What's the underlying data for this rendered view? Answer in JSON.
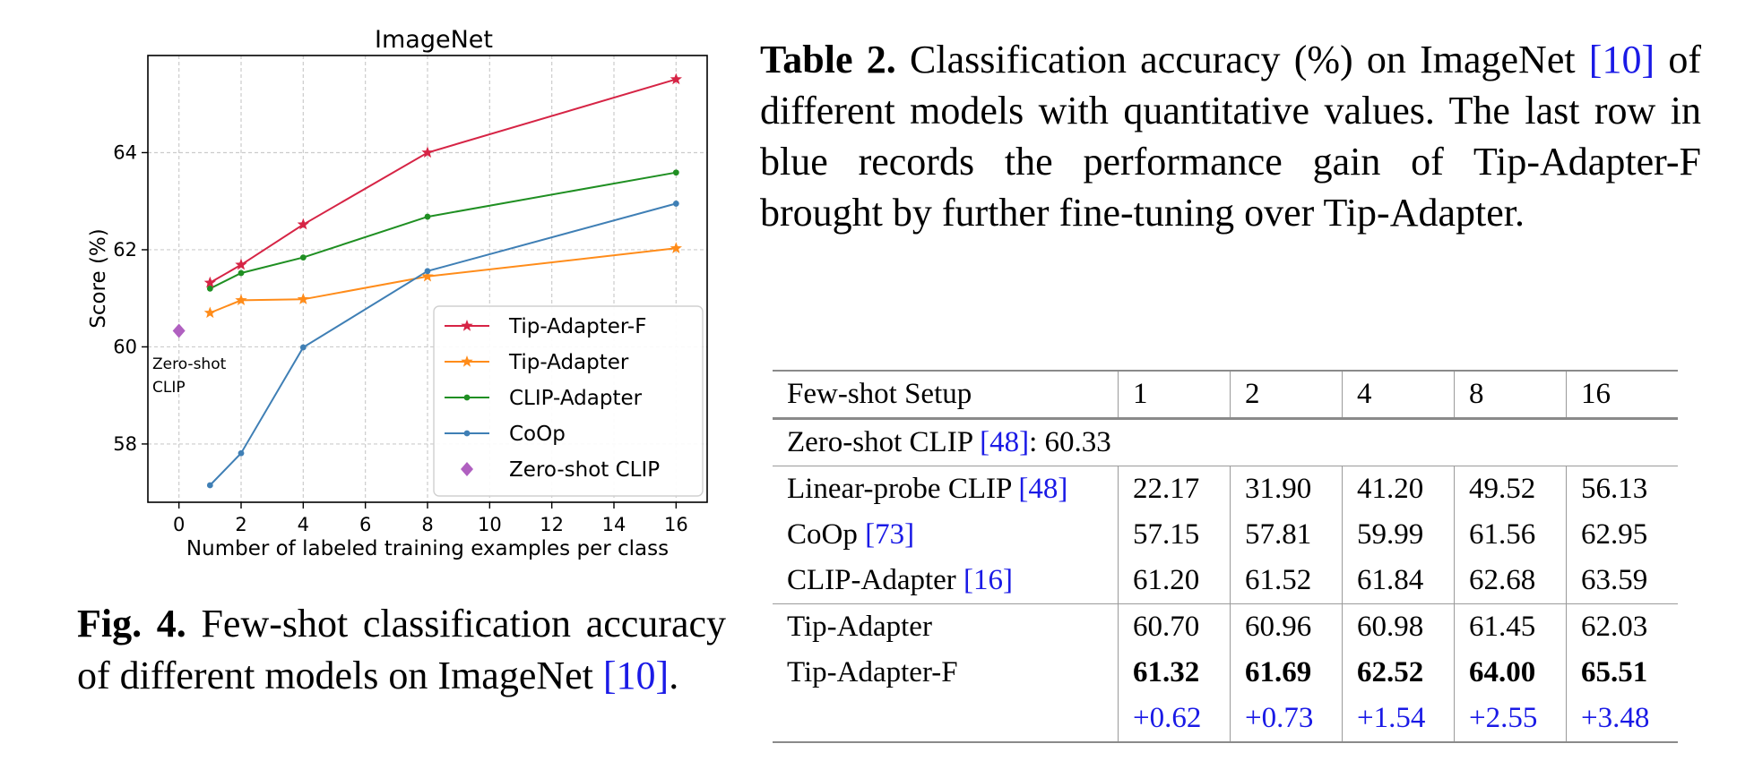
{
  "chart_data": {
    "type": "line",
    "title": "ImageNet",
    "xlabel": "Number of labeled training examples per class",
    "ylabel": "Score (%)",
    "xlim": [
      -1,
      17
    ],
    "ylim": [
      56.8,
      66.0
    ],
    "x_ticks": [
      "0",
      "2",
      "4",
      "6",
      "8",
      "10",
      "12",
      "14",
      "16"
    ],
    "y_ticks": [
      "58",
      "60",
      "62",
      "64"
    ],
    "grid": true,
    "legend_position": "bottom-right",
    "series": [
      {
        "name": "Tip-Adapter-F",
        "color": "#d62445",
        "marker": "star",
        "x": [
          1,
          2,
          4,
          8,
          16
        ],
        "y": [
          61.32,
          61.69,
          62.52,
          64.0,
          65.51
        ]
      },
      {
        "name": "Tip-Adapter",
        "color": "#ff8c1a",
        "marker": "star",
        "x": [
          1,
          2,
          4,
          8,
          16
        ],
        "y": [
          60.7,
          60.96,
          60.98,
          61.45,
          62.03
        ]
      },
      {
        "name": "CLIP-Adapter",
        "color": "#1f8f22",
        "marker": "dot",
        "x": [
          1,
          2,
          4,
          8,
          16
        ],
        "y": [
          61.2,
          61.52,
          61.84,
          62.68,
          63.59
        ]
      },
      {
        "name": "CoOp",
        "color": "#3f7fb5",
        "marker": "dot",
        "x": [
          1,
          2,
          4,
          8,
          16
        ],
        "y": [
          57.15,
          57.81,
          59.99,
          61.56,
          62.95
        ]
      },
      {
        "name": "Zero-shot CLIP",
        "color": "#b060c0",
        "marker": "diamond",
        "x": [
          0
        ],
        "y": [
          60.33
        ]
      }
    ],
    "annotation": {
      "line1": "Zero-shot",
      "line2": "CLIP",
      "x": 0,
      "y": 60.33
    }
  },
  "figure_caption": {
    "label": "Fig. 4.",
    "text": " Few-shot classification accuracy of different models on ImageNet ",
    "ref": "[10]",
    "end": "."
  },
  "table_caption": {
    "label": "Table 2.",
    "text1": " Classification accuracy (%) on ImageNet ",
    "ref": "[10]",
    "text2": " of different models with quantitative values. The last row in blue records the performance gain of Tip-Adapter-F brought by further fine-tuning over Tip-Adapter."
  },
  "table": {
    "header": [
      "Few-shot Setup",
      "1",
      "2",
      "4",
      "8",
      "16"
    ],
    "zero_shot": {
      "text": "Zero-shot CLIP ",
      "ref": "[48]",
      "value": ": 60.33"
    },
    "rows": [
      {
        "name": "Linear-probe CLIP ",
        "ref": "[48]",
        "values": [
          "22.17",
          "31.90",
          "41.20",
          "49.52",
          "56.13"
        ]
      },
      {
        "name": "CoOp ",
        "ref": "[73]",
        "values": [
          "57.15",
          "57.81",
          "59.99",
          "61.56",
          "62.95"
        ]
      },
      {
        "name": "CLIP-Adapter ",
        "ref": "[16]",
        "values": [
          "61.20",
          "61.52",
          "61.84",
          "62.68",
          "63.59"
        ]
      },
      {
        "name": "Tip-Adapter",
        "ref": "",
        "values": [
          "60.70",
          "60.96",
          "60.98",
          "61.45",
          "62.03"
        ]
      },
      {
        "name": "Tip-Adapter-F",
        "ref": "",
        "values": [
          "61.32",
          "61.69",
          "62.52",
          "64.00",
          "65.51"
        ]
      }
    ],
    "gain": [
      "+0.62",
      "+0.73",
      "+1.54",
      "+2.55",
      "+3.48"
    ]
  }
}
